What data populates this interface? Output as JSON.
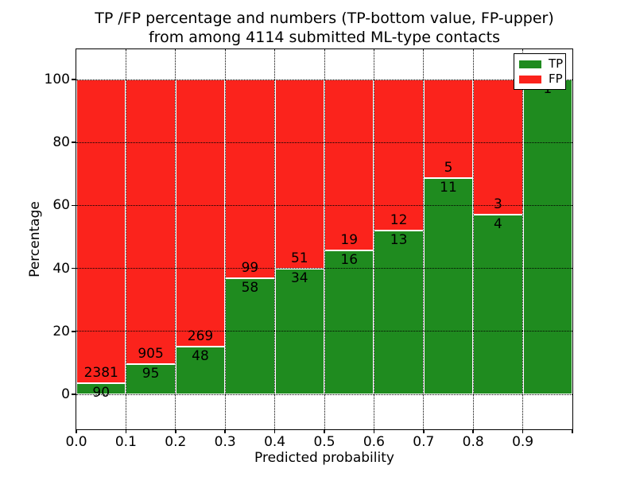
{
  "title": {
    "line1": "TP /FP percentage and numbers (TP-bottom value, FP-upper)",
    "line2": "from among 4114 submitted ML-type contacts"
  },
  "axes": {
    "xlabel": "Predicted probability",
    "ylabel": "Percentage",
    "x_ticks": [
      "0.0",
      "0.1",
      "0.2",
      "0.3",
      "0.4",
      "0.5",
      "0.6",
      "0.7",
      "0.8",
      "0.9"
    ],
    "y_ticks": [
      "0",
      "20",
      "40",
      "60",
      "80",
      "100"
    ],
    "grid": "dotted"
  },
  "legend": {
    "position": "upper right",
    "entries": [
      {
        "label": "TP",
        "color": "#1f8b1f"
      },
      {
        "label": "FP",
        "color": "#fb231c"
      }
    ]
  },
  "chart_data": {
    "type": "bar",
    "stacked": true,
    "normalized_to_percent": true,
    "title": "TP /FP percentage and numbers (TP-bottom value, FP-upper) from among 4114 submitted ML-type contacts",
    "xlabel": "Predicted probability",
    "ylabel": "Percentage",
    "bin_edges": [
      0.0,
      0.1,
      0.2,
      0.3,
      0.4,
      0.5,
      0.6,
      0.7,
      0.8,
      0.9,
      1.0
    ],
    "categories": [
      "0.0-0.1",
      "0.1-0.2",
      "0.2-0.3",
      "0.3-0.4",
      "0.4-0.5",
      "0.5-0.6",
      "0.6-0.7",
      "0.7-0.8",
      "0.8-0.9",
      "0.9-1.0"
    ],
    "series": [
      {
        "name": "TP",
        "color": "#1f8b1f",
        "values": [
          90,
          95,
          48,
          58,
          34,
          16,
          13,
          11,
          4,
          1
        ]
      },
      {
        "name": "FP",
        "color": "#fb231c",
        "values": [
          2381,
          905,
          269,
          99,
          51,
          19,
          12,
          5,
          3,
          0
        ]
      }
    ],
    "tp_percent": [
      3.6,
      9.5,
      15.1,
      36.9,
      40.0,
      45.7,
      52.0,
      68.8,
      57.1,
      100.0
    ],
    "total_contacts": 4114,
    "xlim": [
      0.0,
      1.0
    ],
    "ylim_percent": [
      0,
      100
    ],
    "annotation_note": "FP count printed above each TP/FP boundary, TP count printed below it"
  }
}
